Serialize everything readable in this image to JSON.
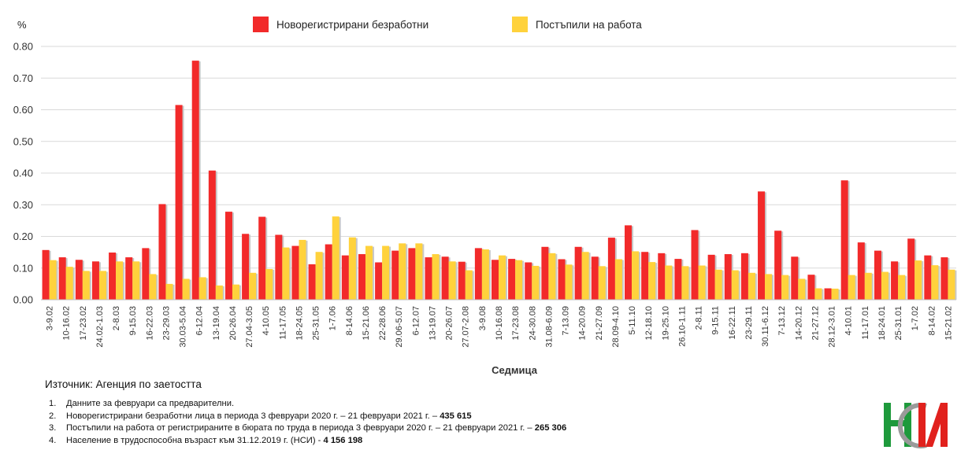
{
  "chart_data": {
    "type": "bar",
    "ylabel": "%",
    "xlabel": "Седмица",
    "ylim": [
      0,
      0.8
    ],
    "yticks": [
      "0.00",
      "0.10",
      "0.20",
      "0.30",
      "0.40",
      "0.50",
      "0.60",
      "0.70",
      "0.80"
    ],
    "grid": true,
    "legend_position": "top-center",
    "categories": [
      "3-9.02",
      "10-16.02",
      "17-23.02",
      "24.02-1.03",
      "2-8.03",
      "9-15.03",
      "16-22.03",
      "23-29.03",
      "30.03-5.04",
      "6-12.04",
      "13-19.04",
      "20-26.04",
      "27.04-3.05",
      "4-10.05",
      "11-17.05",
      "18-24.05",
      "25-31.05",
      "1-7.06",
      "8-14.06",
      "15-21.06",
      "22-28.06",
      "29.06-5.07",
      "6-12.07",
      "13-19.07",
      "20-26.07",
      "27.07-2.08",
      "3-9.08",
      "10-16.08",
      "17-23.08",
      "24-30.08",
      "31.08-6.09",
      "7-13.09",
      "14-20.09",
      "21-27.09",
      "28.09-4.10",
      "5-11.10",
      "12-18.10",
      "19-25.10",
      "26.10-1.11",
      "2-8.11",
      "9-15.11",
      "16-22.11",
      "23-29.11",
      "30.11-6.12",
      "7-13.12",
      "14-20.12",
      "21-27.12",
      "28.12-3.01",
      "4-10.01",
      "11-17.01",
      "18-24.01",
      "25-31.01",
      "1-7.02",
      "8-14.02",
      "15-21.02"
    ],
    "series": [
      {
        "name": "Новорегистрирани безработни",
        "color": "#f22a2a",
        "values": [
          0.157,
          0.134,
          0.126,
          0.121,
          0.149,
          0.134,
          0.163,
          0.302,
          0.615,
          0.755,
          0.408,
          0.278,
          0.208,
          0.262,
          0.205,
          0.17,
          0.112,
          0.175,
          0.14,
          0.144,
          0.118,
          0.155,
          0.163,
          0.134,
          0.136,
          0.12,
          0.163,
          0.126,
          0.129,
          0.118,
          0.167,
          0.128,
          0.167,
          0.136,
          0.196,
          0.235,
          0.151,
          0.147,
          0.129,
          0.22,
          0.142,
          0.144,
          0.147,
          0.342,
          0.218,
          0.136,
          0.079,
          0.036,
          0.377,
          0.181,
          0.155,
          0.121,
          0.193,
          0.14,
          0.134
        ]
      },
      {
        "name": "Постъпили на работа",
        "color": "#ffd23c",
        "values": [
          0.125,
          0.104,
          0.091,
          0.091,
          0.121,
          0.121,
          0.081,
          0.05,
          0.066,
          0.071,
          0.045,
          0.048,
          0.085,
          0.097,
          0.165,
          0.189,
          0.151,
          0.263,
          0.197,
          0.17,
          0.17,
          0.178,
          0.178,
          0.144,
          0.121,
          0.093,
          0.159,
          0.14,
          0.125,
          0.107,
          0.147,
          0.111,
          0.151,
          0.106,
          0.128,
          0.153,
          0.119,
          0.108,
          0.106,
          0.108,
          0.095,
          0.093,
          0.085,
          0.081,
          0.078,
          0.066,
          0.036,
          0.035,
          0.078,
          0.085,
          0.088,
          0.078,
          0.124,
          0.109,
          0.095
        ]
      }
    ]
  },
  "source_text": "Източник: Агенция по заетостта",
  "notes": [
    {
      "num": "1.",
      "text": "Данните за февруари са предварителни.",
      "strong": ""
    },
    {
      "num": "2.",
      "text": "Новорегистрирани безработни лица в периода 3 февруари 2020 г. – 21 февруари 2021 г. – ",
      "strong": "435 615"
    },
    {
      "num": "3.",
      "text": "Постъпили на работа от регистрираните в бюрата по труда в периода 3 февруари 2020 г. – 21 февруари 2021 г. – ",
      "strong": "265 306"
    },
    {
      "num": "4.",
      "text": "Население в трудоспособна възраст към 31.12.2019 г. (НСИ)  - ",
      "strong": "4 156 198"
    }
  ],
  "logo": {
    "name": "nsi-logo",
    "colors": {
      "green": "#1e9a3c",
      "red": "#e1211d",
      "gray": "#9a9a9a"
    }
  }
}
